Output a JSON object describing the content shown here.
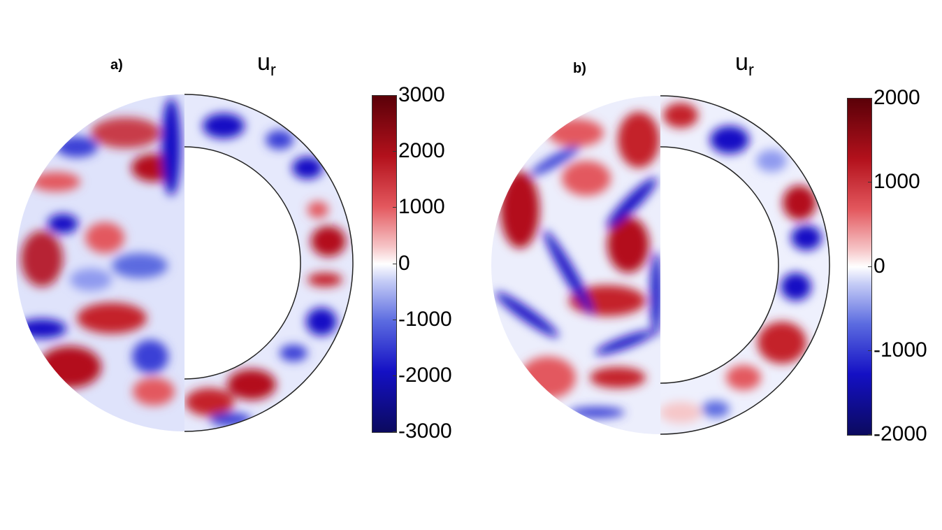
{
  "panels": [
    {
      "label": "a)",
      "variable": "u",
      "variable_subscript": "r",
      "colorbar": {
        "ticks": [
          "3000",
          "2000",
          "1000",
          "0",
          "-1000",
          "-2000",
          "-3000"
        ],
        "min": -3000,
        "max": 3000
      }
    },
    {
      "label": "b)",
      "variable": "u",
      "variable_subscript": "r",
      "colorbar": {
        "ticks": [
          "2000",
          "1000",
          "0",
          "-1000",
          "-2000"
        ],
        "min": -2000,
        "max": 2000
      }
    }
  ],
  "colors": {
    "positive": "#b3111c",
    "negative": "#1410c4",
    "zero": "#ffffff"
  }
}
